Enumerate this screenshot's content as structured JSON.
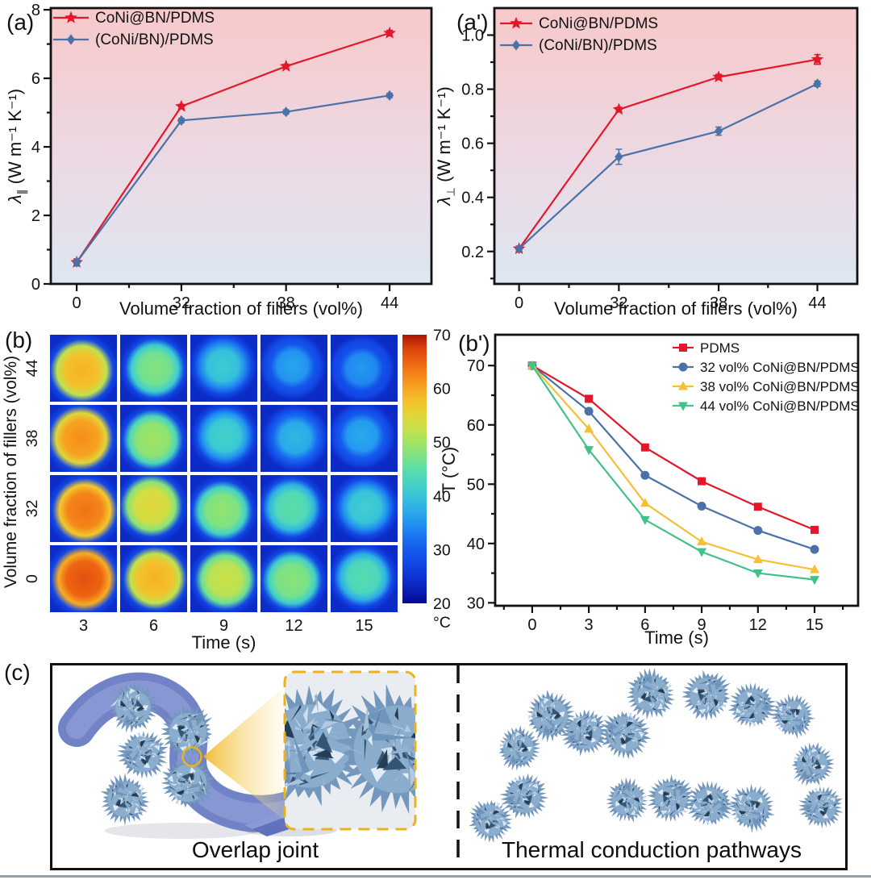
{
  "figure": {
    "panel_labels": {
      "a": "(a)",
      "a_prime": "(a')",
      "b": "(b)",
      "b_prime": "(b')",
      "c": "(c)"
    }
  },
  "chart_data": [
    {
      "id": "a",
      "type": "line",
      "xlabel": "Volume fraction of fillers (vol%)",
      "ylabel": "λ∥ (W m⁻¹ K⁻¹)",
      "categories": [
        "0",
        "32",
        "38",
        "44"
      ],
      "ylim": [
        0,
        8.05
      ],
      "yticks": [
        0,
        2,
        4,
        6,
        8
      ],
      "yticklabels": [
        "0",
        "2",
        "4",
        "6",
        "8"
      ],
      "legend_position": "top-left",
      "grid": false,
      "background_gradient": [
        "#f7c9ca",
        "#ecd9e3",
        "#dde7f2"
      ],
      "series": [
        {
          "name": "CoNi@BN/PDMS",
          "color": "#e4172a",
          "marker": "star",
          "values": [
            0.63,
            5.18,
            6.35,
            7.32
          ],
          "errors": [
            0.1,
            0.06,
            0.06,
            0.08
          ]
        },
        {
          "name": "(CoNi/BN)/PDMS",
          "color": "#4a72a8",
          "marker": "diamond",
          "values": [
            0.63,
            4.77,
            5.02,
            5.5
          ],
          "errors": [
            0.08,
            0.06,
            0.06,
            0.06
          ]
        }
      ]
    },
    {
      "id": "a_prime",
      "type": "line",
      "xlabel": "Volume fraction of fillers (vol%)",
      "ylabel": "λ⊥ (W m⁻¹ K⁻¹)",
      "categories": [
        "0",
        "32",
        "38",
        "44"
      ],
      "ylim": [
        0.08,
        1.1
      ],
      "yticks": [
        0.2,
        0.4,
        0.6,
        0.8,
        1.0
      ],
      "yticklabels": [
        "0.2",
        "0.4",
        "0.6",
        "0.8",
        "1.0"
      ],
      "legend_position": "top-left",
      "grid": false,
      "background_gradient": [
        "#f7c9ca",
        "#ecd9e3",
        "#dde7f2"
      ],
      "series": [
        {
          "name": "CoNi@BN/PDMS",
          "color": "#e4172a",
          "marker": "star",
          "values": [
            0.21,
            0.725,
            0.845,
            0.91
          ],
          "errors": [
            0.01,
            0.008,
            0.01,
            0.018
          ]
        },
        {
          "name": "(CoNi/BN)/PDMS",
          "color": "#4a72a8",
          "marker": "diamond",
          "values": [
            0.21,
            0.55,
            0.645,
            0.82
          ],
          "errors": [
            0.008,
            0.028,
            0.015,
            0.01
          ]
        }
      ]
    },
    {
      "id": "b",
      "type": "heatmap",
      "xlabel": "Time (s)",
      "ylabel": "Volume fraction of fillers (vol%)",
      "columns": [
        "3",
        "6",
        "9",
        "12",
        "15"
      ],
      "rows": [
        "44",
        "38",
        "32",
        "0"
      ],
      "blob_center_temps_c": [
        [
          59,
          48,
          41,
          36.5,
          35.5
        ],
        [
          62,
          50,
          42,
          38.5,
          37
        ],
        [
          64,
          55,
          49,
          45,
          41.5
        ],
        [
          66.5,
          59,
          53,
          48.5,
          44.5
        ]
      ],
      "colorbar": {
        "min": 20,
        "max": 70,
        "ticks": [
          70,
          60,
          50,
          40,
          30,
          20
        ],
        "unit": "°C"
      }
    },
    {
      "id": "b_prime",
      "type": "line",
      "xlabel": "Time (s)",
      "ylabel": "T (°C)",
      "categories": [
        "0",
        "3",
        "6",
        "9",
        "12",
        "15"
      ],
      "x": [
        0,
        3,
        6,
        9,
        12,
        15
      ],
      "ylim": [
        29.5,
        75.2
      ],
      "yticks": [
        30,
        40,
        50,
        60,
        70
      ],
      "yticklabels": [
        "30",
        "40",
        "50",
        "60",
        "70"
      ],
      "legend_position": "top-right",
      "grid": false,
      "series": [
        {
          "name": "PDMS",
          "color": "#e4172a",
          "marker": "square",
          "values": [
            70,
            64.4,
            56.2,
            50.5,
            46.2,
            42.3
          ]
        },
        {
          "name": "32 vol% CoNi@BN/PDMS",
          "color": "#4a72a8",
          "marker": "circle",
          "values": [
            70,
            62.3,
            51.5,
            46.3,
            42.2,
            39.0
          ]
        },
        {
          "name": "38 vol% CoNi@BN/PDMS",
          "color": "#f7bf35",
          "marker": "triangle-up",
          "values": [
            70,
            59.3,
            46.8,
            40.3,
            37.3,
            35.6
          ]
        },
        {
          "name": "44 vol% CoNi@BN/PDMS",
          "color": "#41c287",
          "marker": "triangle-down",
          "values": [
            70,
            55.8,
            44.0,
            38.6,
            35.0,
            33.9
          ]
        }
      ]
    }
  ],
  "panel_c": {
    "left_caption": "Overlap joint",
    "right_caption": "Thermal conduction pathways",
    "accent_color": "#ecb21c",
    "particle_color": "#8aadce",
    "ribbon_color": "#7183c6"
  }
}
